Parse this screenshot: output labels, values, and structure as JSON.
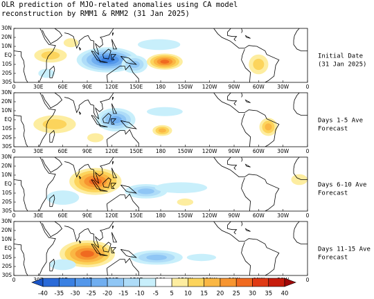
{
  "title": [
    "OLR prediction of MJO-related anomalies using CA model",
    "reconstruction by RMM1 & RMM2 (31 Jan 2025)"
  ],
  "lat_labels": [
    "30N",
    "20N",
    "10N",
    "EQ",
    "10S",
    "20S",
    "30S"
  ],
  "lon_labels": [
    "0",
    "30E",
    "60E",
    "90E",
    "120E",
    "150E",
    "180",
    "150W",
    "120W",
    "90W",
    "60W",
    "30W",
    "0"
  ],
  "panels": [
    {
      "label": [
        "Initial Date",
        "(31 Jan 2025)"
      ]
    },
    {
      "label": [
        "Days 1-5 Ave",
        "Forecast"
      ]
    },
    {
      "label": [
        "Days 6-10 Ave",
        "Forecast"
      ]
    },
    {
      "label": [
        "Days 11-15 Ave",
        "Forecast"
      ]
    }
  ],
  "colorbar": {
    "labels": [
      "-40",
      "-35",
      "-30",
      "-25",
      "-20",
      "-15",
      "-10",
      "-5",
      "5",
      "10",
      "15",
      "20",
      "25",
      "30",
      "35",
      "40"
    ],
    "colors": [
      "#1a55c8",
      "#2a6ad8",
      "#3a80e2",
      "#5397ea",
      "#70aef0",
      "#8fc6f5",
      "#aedcf8",
      "#c8effb",
      "#ffffff",
      "#fdeda0",
      "#fcd45c",
      "#fab744",
      "#f79530",
      "#f06a20",
      "#e03a14",
      "#c71c0c",
      "#a00808"
    ]
  }
}
